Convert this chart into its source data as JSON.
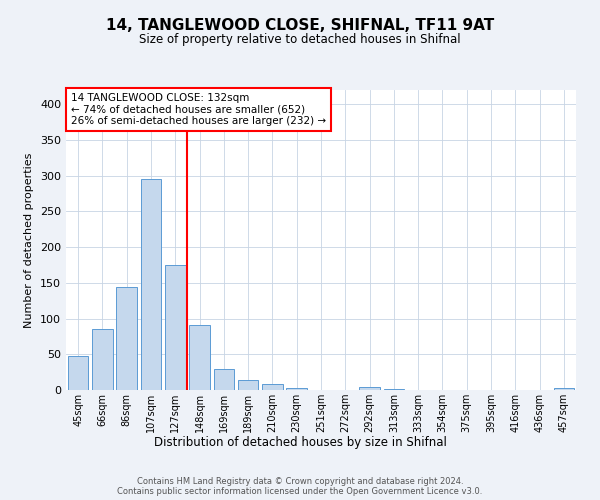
{
  "title": "14, TANGLEWOOD CLOSE, SHIFNAL, TF11 9AT",
  "subtitle": "Size of property relative to detached houses in Shifnal",
  "xlabel": "Distribution of detached houses by size in Shifnal",
  "ylabel": "Number of detached properties",
  "bar_labels": [
    "45sqm",
    "66sqm",
    "86sqm",
    "107sqm",
    "127sqm",
    "148sqm",
    "169sqm",
    "189sqm",
    "210sqm",
    "230sqm",
    "251sqm",
    "272sqm",
    "292sqm",
    "313sqm",
    "333sqm",
    "354sqm",
    "375sqm",
    "395sqm",
    "416sqm",
    "436sqm",
    "457sqm"
  ],
  "bar_heights": [
    47,
    86,
    144,
    296,
    175,
    91,
    30,
    14,
    8,
    3,
    0,
    0,
    4,
    2,
    0,
    0,
    0,
    0,
    0,
    0,
    3
  ],
  "bar_color": "#c5d8ed",
  "bar_edge_color": "#5b9bd5",
  "vline_x": 4.5,
  "vline_color": "red",
  "annotation_title": "14 TANGLEWOOD CLOSE: 132sqm",
  "annotation_line1": "← 74% of detached houses are smaller (652)",
  "annotation_line2": "26% of semi-detached houses are larger (232) →",
  "annotation_box_color": "white",
  "annotation_box_edge": "red",
  "ylim": [
    0,
    420
  ],
  "yticks": [
    0,
    50,
    100,
    150,
    200,
    250,
    300,
    350,
    400
  ],
  "footer1": "Contains HM Land Registry data © Crown copyright and database right 2024.",
  "footer2": "Contains public sector information licensed under the Open Government Licence v3.0.",
  "bg_color": "#eef2f8",
  "plot_bg_color": "#ffffff",
  "grid_color": "#c8d4e4"
}
